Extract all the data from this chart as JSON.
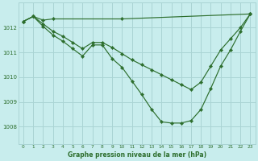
{
  "bg_color": "#c8eded",
  "grid_color": "#aad4d4",
  "line_color": "#2d6e2d",
  "xlabel": "Graphe pression niveau de la mer (hPa)",
  "xlabel_color": "#2d6e2d",
  "ylabel_values": [
    1008,
    1009,
    1010,
    1011,
    1012
  ],
  "xlim": [
    -0.5,
    23.5
  ],
  "ylim": [
    1007.3,
    1013.0
  ],
  "xticks": [
    0,
    1,
    2,
    3,
    4,
    5,
    6,
    7,
    8,
    9,
    10,
    11,
    12,
    13,
    14,
    15,
    16,
    17,
    18,
    19,
    20,
    21,
    22,
    23
  ],
  "series1_x": [
    0,
    1,
    2,
    3,
    10,
    23
  ],
  "series1_y": [
    1012.25,
    1012.45,
    1012.3,
    1012.35,
    1012.35,
    1012.55
  ],
  "series2_x": [
    0,
    1,
    2,
    3,
    4,
    5,
    6,
    7,
    8,
    9,
    10,
    11,
    12,
    13,
    14,
    15,
    16,
    17,
    18,
    19,
    20,
    21,
    22,
    23
  ],
  "series2_y": [
    1012.25,
    1012.45,
    1012.15,
    1011.85,
    1011.65,
    1011.4,
    1011.15,
    1011.4,
    1011.4,
    1011.2,
    1010.95,
    1010.7,
    1010.5,
    1010.3,
    1010.1,
    1009.9,
    1009.7,
    1009.5,
    1009.8,
    1010.45,
    1011.1,
    1011.55,
    1012.0,
    1012.55
  ],
  "series3_x": [
    0,
    1,
    2,
    3,
    4,
    5,
    6,
    7,
    8,
    9,
    10,
    11,
    12,
    13,
    14,
    15,
    16,
    17,
    18,
    19,
    20,
    21,
    22,
    23
  ],
  "series3_y": [
    1012.25,
    1012.45,
    1012.05,
    1011.7,
    1011.45,
    1011.15,
    1010.85,
    1011.3,
    1011.3,
    1010.75,
    1010.4,
    1009.85,
    1009.3,
    1008.7,
    1008.2,
    1008.15,
    1008.15,
    1008.25,
    1008.7,
    1009.55,
    1010.45,
    1011.1,
    1011.85,
    1012.55
  ]
}
